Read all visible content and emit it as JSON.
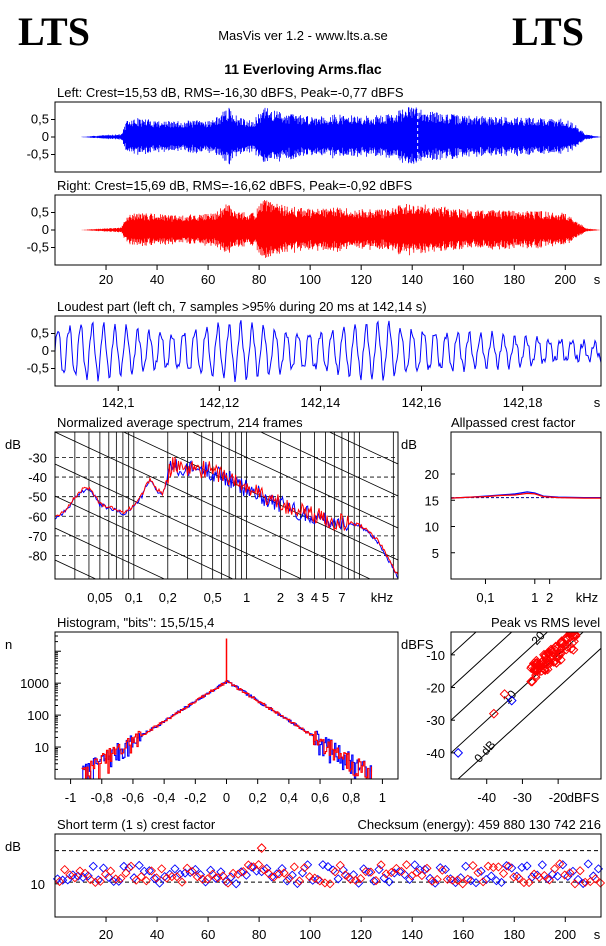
{
  "header": {
    "logo_left": "LTS",
    "logo_right": "LTS",
    "app": "MasVis ver 1.2 - www.lts.a.se",
    "file": "11 Everloving Arms.flac"
  },
  "colors": {
    "left": "#0000ff",
    "right": "#ff0000",
    "axis": "#000000"
  },
  "chart_data": [
    {
      "id": "left-waveform",
      "type": "area",
      "title": "Left: Crest=15,53 dB, RMS=-16,30 dBFS, Peak=-0,77 dBFS",
      "yticks": [
        "0,5",
        "0",
        "-0,5"
      ],
      "ylim": [
        -1,
        1
      ],
      "xlim": [
        0,
        214
      ],
      "envelope": [
        [
          0,
          0.0
        ],
        [
          10,
          0.0
        ],
        [
          20,
          0.06
        ],
        [
          26,
          0.08
        ],
        [
          28,
          0.45
        ],
        [
          32,
          0.55
        ],
        [
          38,
          0.5
        ],
        [
          45,
          0.45
        ],
        [
          55,
          0.48
        ],
        [
          62,
          0.5
        ],
        [
          68,
          0.85
        ],
        [
          72,
          0.55
        ],
        [
          78,
          0.5
        ],
        [
          82,
          0.85
        ],
        [
          90,
          0.7
        ],
        [
          100,
          0.6
        ],
        [
          110,
          0.65
        ],
        [
          120,
          0.6
        ],
        [
          130,
          0.65
        ],
        [
          140,
          0.9
        ],
        [
          150,
          0.7
        ],
        [
          160,
          0.62
        ],
        [
          170,
          0.6
        ],
        [
          180,
          0.58
        ],
        [
          190,
          0.55
        ],
        [
          200,
          0.52
        ],
        [
          204,
          0.35
        ],
        [
          208,
          0.08
        ],
        [
          214,
          0.0
        ]
      ],
      "marker_x": 142.14
    },
    {
      "id": "right-waveform",
      "type": "area",
      "title": "Right: Crest=15,69 dB, RMS=-16,62 dBFS, Peak=-0,92 dBFS",
      "yticks": [
        "0,5",
        "0",
        "-0,5"
      ],
      "ylim": [
        -1,
        1
      ],
      "xlim": [
        0,
        214
      ],
      "xticks": [
        "20",
        "40",
        "60",
        "80",
        "100",
        "120",
        "140",
        "160",
        "180",
        "200",
        "s"
      ],
      "xtick_values": [
        20,
        40,
        60,
        80,
        100,
        120,
        140,
        160,
        180,
        200
      ],
      "envelope": [
        [
          0,
          0.0
        ],
        [
          10,
          0.0
        ],
        [
          20,
          0.05
        ],
        [
          26,
          0.07
        ],
        [
          28,
          0.4
        ],
        [
          32,
          0.5
        ],
        [
          38,
          0.48
        ],
        [
          45,
          0.42
        ],
        [
          55,
          0.45
        ],
        [
          62,
          0.48
        ],
        [
          68,
          0.8
        ],
        [
          72,
          0.52
        ],
        [
          78,
          0.5
        ],
        [
          82,
          0.9
        ],
        [
          90,
          0.7
        ],
        [
          100,
          0.6
        ],
        [
          110,
          0.65
        ],
        [
          120,
          0.6
        ],
        [
          130,
          0.6
        ],
        [
          140,
          0.85
        ],
        [
          150,
          0.7
        ],
        [
          160,
          0.6
        ],
        [
          170,
          0.58
        ],
        [
          180,
          0.55
        ],
        [
          190,
          0.55
        ],
        [
          200,
          0.5
        ],
        [
          204,
          0.3
        ],
        [
          208,
          0.05
        ],
        [
          214,
          0.0
        ]
      ]
    },
    {
      "id": "loudest-part",
      "type": "line",
      "title": "Loudest part (left  ch, 7 samples >95% during 20 ms at 142,14 s)",
      "yticks": [
        "0,5",
        "0",
        "-0,5"
      ],
      "ylim": [
        -1,
        1
      ],
      "xlim": [
        142.0875,
        142.1955
      ],
      "xticks": [
        "142,1",
        "142,12",
        "142,14",
        "142,16",
        "142,18",
        "s"
      ],
      "xtick_values": [
        142.1,
        142.12,
        142.14,
        142.16,
        142.18
      ]
    },
    {
      "id": "spectrum",
      "type": "line",
      "title": "Normalized average spectrum, 214 frames",
      "ylabel": "dB",
      "yticks": [
        "-30",
        "-40",
        "-50",
        "-60",
        "-70",
        "-80"
      ],
      "ylim": [
        -92,
        -17
      ],
      "xticks": [
        "0,05",
        "0,1",
        "0,2",
        "0,5",
        "1",
        "2",
        "3",
        "4",
        "5",
        "7",
        "kHz"
      ],
      "xtick_values": [
        0.05,
        0.1,
        0.2,
        0.5,
        1,
        2,
        3,
        4,
        5,
        7
      ],
      "xlim": [
        0.02,
        22
      ],
      "points": [
        [
          0.02,
          -61
        ],
        [
          0.025,
          -57
        ],
        [
          0.03,
          -51
        ],
        [
          0.035,
          -47
        ],
        [
          0.04,
          -46
        ],
        [
          0.045,
          -50
        ],
        [
          0.05,
          -54
        ],
        [
          0.06,
          -56
        ],
        [
          0.07,
          -57
        ],
        [
          0.08,
          -59
        ],
        [
          0.09,
          -57
        ],
        [
          0.1,
          -55
        ],
        [
          0.11,
          -52
        ],
        [
          0.12,
          -49
        ],
        [
          0.13,
          -44
        ],
        [
          0.14,
          -42
        ],
        [
          0.15,
          -44
        ],
        [
          0.16,
          -47
        ],
        [
          0.18,
          -49
        ],
        [
          0.2,
          -40
        ],
        [
          0.22,
          -33
        ],
        [
          0.25,
          -36
        ],
        [
          0.28,
          -38
        ],
        [
          0.3,
          -37
        ],
        [
          0.35,
          -35
        ],
        [
          0.4,
          -37
        ],
        [
          0.45,
          -36
        ],
        [
          0.5,
          -38
        ],
        [
          0.6,
          -39
        ],
        [
          0.7,
          -41
        ],
        [
          0.8,
          -43
        ],
        [
          0.9,
          -45
        ],
        [
          1.0,
          -46
        ],
        [
          1.2,
          -48
        ],
        [
          1.5,
          -51
        ],
        [
          2.0,
          -54
        ],
        [
          2.5,
          -56
        ],
        [
          3.0,
          -58
        ],
        [
          4.0,
          -60
        ],
        [
          5.0,
          -62
        ],
        [
          6.0,
          -63
        ],
        [
          7.0,
          -63
        ],
        [
          8.0,
          -64
        ],
        [
          10,
          -65
        ],
        [
          12,
          -68
        ],
        [
          15,
          -74
        ],
        [
          18,
          -82
        ],
        [
          22,
          -91
        ]
      ]
    },
    {
      "id": "allpassed-crest",
      "type": "line",
      "title": "Allpassed crest factor",
      "ylabel": "dB",
      "yticks": [
        "20",
        "15",
        "10",
        "5"
      ],
      "ytick_values": [
        20,
        15,
        10,
        5
      ],
      "ylim": [
        0,
        28
      ],
      "xticks": [
        "0,1",
        "1",
        "2",
        "kHz"
      ],
      "xtick_values": [
        0.1,
        1,
        2
      ],
      "xlim": [
        0.02,
        22
      ],
      "reference": 15.5,
      "series": [
        {
          "values": [
            [
              0.02,
              15.4
            ],
            [
              0.05,
              15.6
            ],
            [
              0.1,
              15.8
            ],
            [
              0.2,
              16.0
            ],
            [
              0.4,
              16.2
            ],
            [
              0.7,
              16.6
            ],
            [
              1.0,
              16.4
            ],
            [
              1.5,
              15.8
            ],
            [
              3,
              15.6
            ],
            [
              10,
              15.5
            ],
            [
              22,
              15.5
            ]
          ]
        },
        {
          "values": [
            [
              0.02,
              15.4
            ],
            [
              0.05,
              15.6
            ],
            [
              0.1,
              15.7
            ],
            [
              0.2,
              15.9
            ],
            [
              0.4,
              16.0
            ],
            [
              0.7,
              16.3
            ],
            [
              1.0,
              16.2
            ],
            [
              1.5,
              15.7
            ],
            [
              3,
              15.5
            ],
            [
              10,
              15.4
            ],
            [
              22,
              15.4
            ]
          ]
        }
      ]
    },
    {
      "id": "histogram",
      "type": "line",
      "title": "Histogram, \"bits\": 15,5/15,4",
      "ylabel": "n",
      "yticks": [
        "1000",
        "100",
        "10"
      ],
      "ytick_values": [
        1000,
        100,
        10
      ],
      "ylim": [
        1,
        40000
      ],
      "log_y": true,
      "xticks": [
        "-1",
        "-0,8",
        "-0,6",
        "-0,4",
        "-0,2",
        "0",
        "0,2",
        "0,4",
        "0,6",
        "0,8",
        "1"
      ],
      "xtick_values": [
        -1,
        -0.8,
        -0.6,
        -0.4,
        -0.2,
        0,
        0.2,
        0.4,
        0.6,
        0.8,
        1
      ],
      "xlim": [
        -1.1,
        1.1
      ],
      "peak": {
        "x": 0,
        "y": 1150
      },
      "spike": 25000,
      "tail_limit": 0.93
    },
    {
      "id": "peak-vs-rms",
      "type": "scatter",
      "title": "Peak vs RMS level",
      "ylabel": "dBFS",
      "xlabel": "dBFS",
      "yticks": [
        "-10",
        "-20",
        "-30",
        "-40"
      ],
      "ytick_values": [
        -10,
        -20,
        -30,
        -40
      ],
      "xticks": [
        "-40",
        "-30",
        "-20"
      ],
      "xtick_values": [
        -40,
        -30,
        -20
      ],
      "xlim": [
        -50,
        -8
      ],
      "ylim": [
        -48,
        -3
      ],
      "diagonals": [
        "40",
        "30",
        "20",
        "10",
        "0 dB"
      ],
      "diagonal_values": [
        40,
        30,
        20,
        10,
        0
      ],
      "cluster": {
        "x": [
          -28,
          -15
        ],
        "slope": 0.85,
        "center": [
          -21,
          -10
        ]
      },
      "outliers": [
        [
          -33,
          -24
        ],
        [
          -35,
          -22
        ],
        [
          -48,
          -40
        ],
        [
          -38,
          -28
        ]
      ]
    },
    {
      "id": "short-term-crest",
      "type": "scatter",
      "title": "Short term (1 s) crest factor",
      "checksum": "Checksum (energy):   459 880 130 742 216",
      "ylabel": "dB",
      "yticks": [
        "10"
      ],
      "ytick_values": [
        10
      ],
      "ylim": [
        6,
        16
      ],
      "xticks": [
        "20",
        "40",
        "60",
        "80",
        "100",
        "120",
        "140",
        "160",
        "180",
        "200",
        "s"
      ],
      "xtick_values": [
        20,
        40,
        60,
        80,
        100,
        120,
        140,
        160,
        180,
        200
      ],
      "xlim": [
        0,
        214
      ],
      "ref_lines": [
        10.2,
        14.0
      ],
      "mean": 11.2,
      "outlier": [
        81,
        14.3
      ]
    }
  ]
}
